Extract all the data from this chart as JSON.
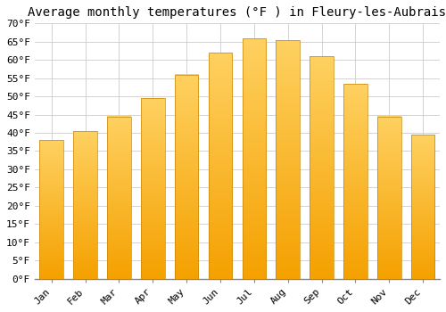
{
  "title": "Average monthly temperatures (°F ) in Fleury-les-Aubrais",
  "months": [
    "Jan",
    "Feb",
    "Mar",
    "Apr",
    "May",
    "Jun",
    "Jul",
    "Aug",
    "Sep",
    "Oct",
    "Nov",
    "Dec"
  ],
  "values": [
    38,
    40.5,
    44.5,
    49.5,
    56,
    62,
    66,
    65.5,
    61,
    53.5,
    44.5,
    39.5
  ],
  "bar_color_top": "#FFD060",
  "bar_color_bottom": "#F5A000",
  "bar_edge_color": "#C8850A",
  "ylim": [
    0,
    70
  ],
  "yticks": [
    0,
    5,
    10,
    15,
    20,
    25,
    30,
    35,
    40,
    45,
    50,
    55,
    60,
    65,
    70
  ],
  "background_color": "#FFFFFF",
  "grid_color": "#CCCCCC",
  "title_fontsize": 10,
  "tick_fontsize": 8,
  "font_family": "monospace"
}
